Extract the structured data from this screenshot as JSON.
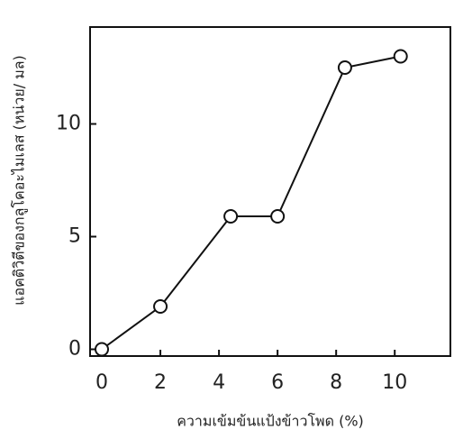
{
  "chart_data": {
    "type": "line",
    "x_label": "ความเข้มข้นแป้งข้าวโพด (%)",
    "y_label": "แอคติวิตีของกลูโคอะไมเลส (หน่วย/ มล)",
    "x": [
      0,
      2,
      4.4,
      6,
      8.3,
      10.2
    ],
    "values": [
      0,
      1.9,
      5.9,
      5.9,
      12.5,
      13
    ],
    "color": "#111111",
    "xlim": [
      -0.4,
      11.9
    ],
    "xticks": [
      0,
      2,
      4,
      6,
      8,
      10
    ],
    "ylim": [
      -0.3,
      14.3
    ],
    "yticks": [
      0,
      5,
      10
    ],
    "grid": false
  }
}
